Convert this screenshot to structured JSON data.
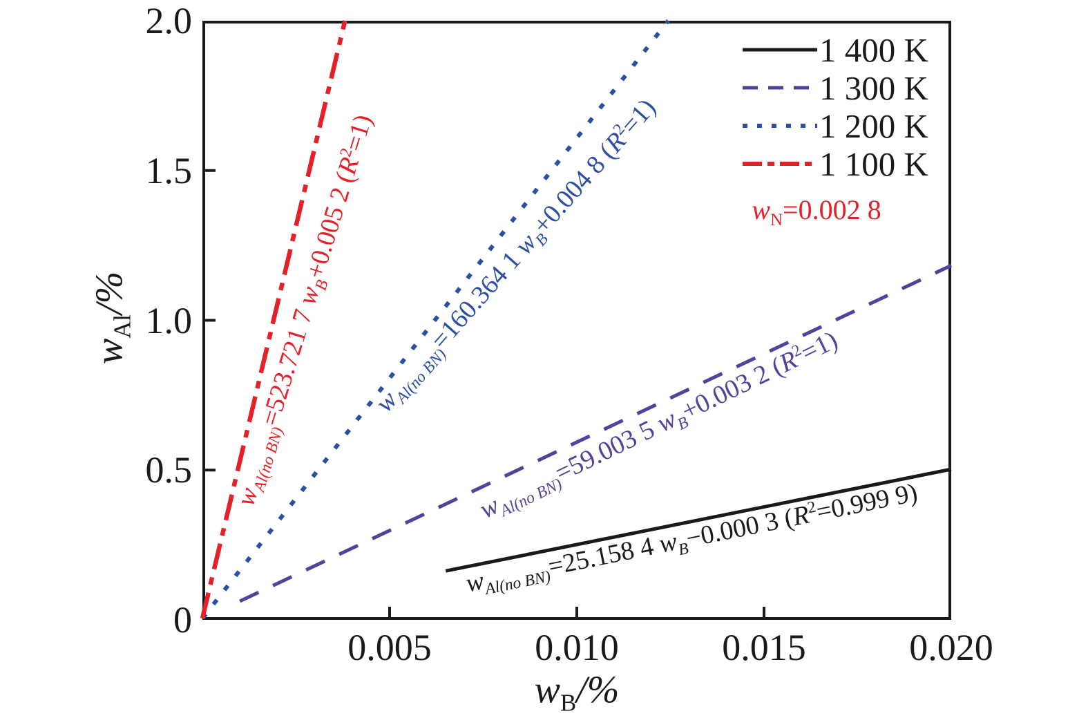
{
  "chart_data": {
    "type": "line",
    "title": "",
    "xlabel": "w_{B}/%",
    "ylabel": "w_{Al}/%",
    "xlim": [
      0,
      0.02
    ],
    "ylim": [
      0,
      2.0
    ],
    "grid": false,
    "legend_position": "top-right",
    "x_ticks": [
      {
        "v": 0.005,
        "label": "0.005"
      },
      {
        "v": 0.01,
        "label": "0.010"
      },
      {
        "v": 0.015,
        "label": "0.015"
      },
      {
        "v": 0.02,
        "label": "0.020"
      }
    ],
    "y_ticks": [
      {
        "v": 0,
        "label": "0"
      },
      {
        "v": 0.5,
        "label": "0.5"
      },
      {
        "v": 1.0,
        "label": "1.0"
      },
      {
        "v": 1.5,
        "label": "1.5"
      },
      {
        "v": 2.0,
        "label": "2.0"
      }
    ],
    "annotation": {
      "text": "w_{N}=0.002 8",
      "color": "#e32129"
    },
    "series": [
      {
        "name": "1 400 K",
        "style": "solid",
        "color": "#1a1a1a",
        "slope": 25.1584,
        "intercept": -0.0003,
        "x_range": [
          0.0065,
          0.02
        ],
        "r_squared": 0.9999,
        "equation": "w_{Al(no BN)}=25.158 4 w_{B}−0.000 3 (R^{2}=0.999 9)"
      },
      {
        "name": "1 300 K",
        "style": "dashed",
        "color": "#4f4499",
        "slope": 59.0035,
        "intercept": 0.0032,
        "x_range": [
          0.001,
          0.02
        ],
        "r_squared": 1,
        "equation": "w_{Al(no BN)}=59.003 5 w_{B}+0.003 2 (R^{2}=1)"
      },
      {
        "name": "1 200 K",
        "style": "dotted",
        "color": "#2d4fa1",
        "slope": 160.3641,
        "intercept": 0.0048,
        "x_range": [
          0,
          0.0124425
        ],
        "r_squared": 1,
        "equation": "w_{Al(no BN)}=160.364 1 w_{B}+0.004 8 (R^{2}=1)"
      },
      {
        "name": "1 100 K",
        "style": "dashdot",
        "color": "#e32129",
        "slope": 523.7217,
        "intercept": 0.0052,
        "x_range": [
          0,
          0.0038088
        ],
        "r_squared": 1,
        "equation": "w_{Al(no BN)}=523.721 7 w_{B}+0.005 2 (R^{2}=1)"
      }
    ]
  }
}
